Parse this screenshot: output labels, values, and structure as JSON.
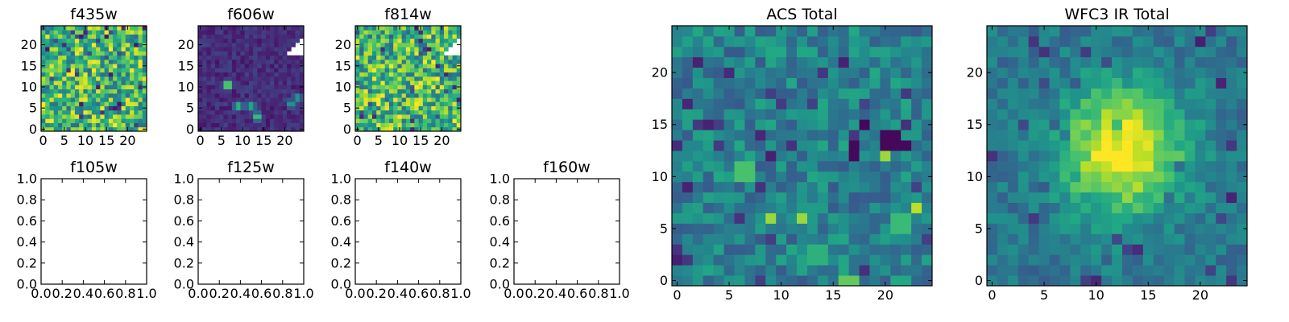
{
  "chart_data": [
    {
      "type": "heatmap",
      "title": "f435w",
      "xticks": [
        "0",
        "5",
        "10",
        "15",
        "20"
      ],
      "yticks": [
        "0",
        "5",
        "10",
        "15",
        "20"
      ],
      "xlim": [
        -0.5,
        24.5
      ],
      "ylim": [
        -0.5,
        24.5
      ],
      "colormap": "viridis",
      "pattern": "noise_high",
      "masked_upper_right": false
    },
    {
      "type": "heatmap",
      "title": "f606w",
      "xticks": [
        "0",
        "5",
        "10",
        "15",
        "20"
      ],
      "yticks": [
        "0",
        "5",
        "10",
        "15",
        "20"
      ],
      "xlim": [
        -0.5,
        24.5
      ],
      "ylim": [
        -0.5,
        24.5
      ],
      "colormap": "viridis",
      "pattern": "dark_sources",
      "masked_upper_right": true,
      "sources": [
        {
          "x": 6.5,
          "y": 10.5,
          "peak": 1.0
        },
        {
          "x": 9,
          "y": 5.5,
          "peak": 0.75
        },
        {
          "x": 12,
          "y": 5.5,
          "peak": 0.7
        },
        {
          "x": 13.5,
          "y": 3,
          "peak": 0.8
        },
        {
          "x": 21.5,
          "y": 6,
          "peak": 0.6
        },
        {
          "x": 23,
          "y": 7.5,
          "peak": 0.6
        }
      ]
    },
    {
      "type": "heatmap",
      "title": "f814w",
      "xticks": [
        "0",
        "5",
        "10",
        "15",
        "20"
      ],
      "yticks": [
        "0",
        "5",
        "10",
        "15",
        "20"
      ],
      "xlim": [
        -0.5,
        24.5
      ],
      "ylim": [
        -0.5,
        24.5
      ],
      "colormap": "viridis",
      "pattern": "noise_high",
      "masked_upper_right": true
    },
    {
      "type": "empty",
      "title": "f105w",
      "xticks": [
        "0.0",
        "0.2",
        "0.4",
        "0.6",
        "0.8",
        "1.0"
      ],
      "yticks": [
        "0.0",
        "0.2",
        "0.4",
        "0.6",
        "0.8",
        "1.0"
      ],
      "xlim": [
        0,
        1
      ],
      "ylim": [
        0,
        1
      ]
    },
    {
      "type": "empty",
      "title": "f125w",
      "xticks": [
        "0.0",
        "0.2",
        "0.4",
        "0.6",
        "0.8",
        "1.0"
      ],
      "yticks": [
        "0.0",
        "0.2",
        "0.4",
        "0.6",
        "0.8",
        "1.0"
      ],
      "xlim": [
        0,
        1
      ],
      "ylim": [
        0,
        1
      ]
    },
    {
      "type": "empty",
      "title": "f140w",
      "xticks": [
        "0.0",
        "0.2",
        "0.4",
        "0.6",
        "0.8",
        "1.0"
      ],
      "yticks": [
        "0.0",
        "0.2",
        "0.4",
        "0.6",
        "0.8",
        "1.0"
      ],
      "xlim": [
        0,
        1
      ],
      "ylim": [
        0,
        1
      ]
    },
    {
      "type": "empty",
      "title": "f160w",
      "xticks": [
        "0.0",
        "0.2",
        "0.4",
        "0.6",
        "0.8",
        "1.0"
      ],
      "yticks": [
        "0.0",
        "0.2",
        "0.4",
        "0.6",
        "0.8",
        "1.0"
      ],
      "xlim": [
        0,
        1
      ],
      "ylim": [
        0,
        1
      ]
    },
    {
      "type": "heatmap",
      "title": "ACS Total",
      "xticks": [
        "0",
        "5",
        "10",
        "15",
        "20"
      ],
      "yticks": [
        "0",
        "5",
        "10",
        "15",
        "20"
      ],
      "xlim": [
        -0.5,
        24.5
      ],
      "ylim": [
        -0.5,
        24.5
      ],
      "colormap": "viridis",
      "pattern": "mid_sources",
      "masked_upper_right": false,
      "sources": [
        {
          "x": 6.5,
          "y": 10.5,
          "peak": 1.0
        },
        {
          "x": 9,
          "y": 6,
          "peak": 0.85
        },
        {
          "x": 12,
          "y": 6,
          "peak": 0.85
        },
        {
          "x": 13.5,
          "y": 2.5,
          "peak": 0.9
        },
        {
          "x": 16.5,
          "y": 0,
          "peak": 0.9
        },
        {
          "x": 20,
          "y": 12,
          "peak": 0.85
        },
        {
          "x": 21.5,
          "y": 5.5,
          "peak": 0.95
        },
        {
          "x": 23,
          "y": 7,
          "peak": 0.9
        }
      ],
      "dark_spots": [
        {
          "x": 17,
          "y": 13
        },
        {
          "x": 18,
          "y": 15
        },
        {
          "x": 20.5,
          "y": 13.5
        },
        {
          "x": 22,
          "y": 13
        },
        {
          "x": 17,
          "y": 12
        }
      ]
    },
    {
      "type": "heatmap",
      "title": "WFC3 IR Total",
      "xticks": [
        "0",
        "5",
        "10",
        "15",
        "20"
      ],
      "yticks": [
        "0",
        "5",
        "10",
        "15",
        "20"
      ],
      "xlim": [
        -0.5,
        24.5
      ],
      "ylim": [
        -0.5,
        24.5
      ],
      "colormap": "viridis",
      "pattern": "central_blob",
      "masked_upper_right": false,
      "sources": [
        {
          "x": 12.5,
          "y": 12.5,
          "peak": 1.0
        }
      ]
    }
  ]
}
